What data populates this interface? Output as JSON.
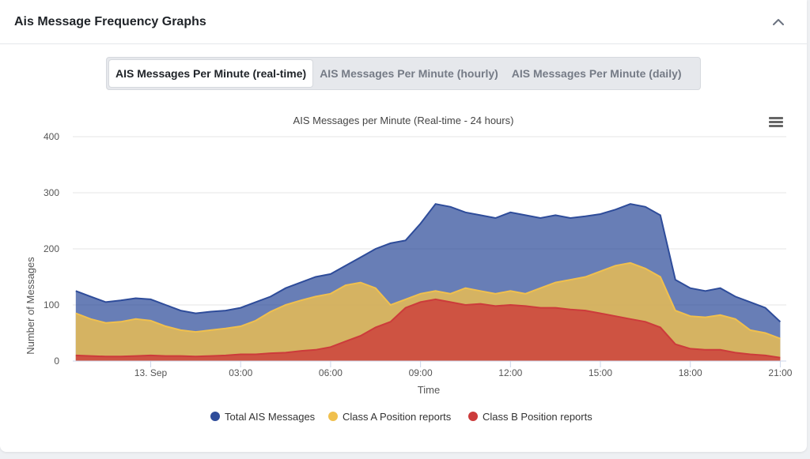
{
  "panel": {
    "title": "Ais Message Frequency Graphs"
  },
  "tabs": [
    {
      "label": "AIS Messages Per Minute (real-time)",
      "active": true
    },
    {
      "label": "AIS Messages Per Minute (hourly)",
      "active": false
    },
    {
      "label": "AIS Messages Per Minute (daily)",
      "active": false
    }
  ],
  "icons": {
    "collapse": "chevron-up-icon",
    "menu": "hamburger-menu-icon"
  },
  "colors": {
    "total": "#2e4c9a",
    "class_a": "#f0c04e",
    "class_b": "#cc3b3b",
    "grid": "#e6e6e6",
    "text": "#555555"
  },
  "chart_data": {
    "type": "area",
    "title": "AIS Messages per Minute (Real-time - 24 hours)",
    "xlabel": "Time",
    "ylabel": "Number of Messages",
    "ylim": [
      0,
      400
    ],
    "yticks": [
      0,
      100,
      200,
      300,
      400
    ],
    "xlim": [
      -2.6,
      21.2
    ],
    "xticks": [
      {
        "value": 0,
        "label": "13. Sep"
      },
      {
        "value": 3,
        "label": "03:00"
      },
      {
        "value": 6,
        "label": "06:00"
      },
      {
        "value": 9,
        "label": "09:00"
      },
      {
        "value": 12,
        "label": "12:00"
      },
      {
        "value": 15,
        "label": "15:00"
      },
      {
        "value": 18,
        "label": "18:00"
      },
      {
        "value": 21,
        "label": "21:00"
      }
    ],
    "grid": true,
    "legend_position": "bottom-center",
    "x": [
      -2.5,
      -2,
      -1.5,
      -1,
      -0.5,
      0,
      0.5,
      1,
      1.5,
      2,
      2.5,
      3,
      3.5,
      4,
      4.5,
      5,
      5.5,
      6,
      6.5,
      7,
      7.5,
      8,
      8.5,
      9,
      9.5,
      10,
      10.5,
      11,
      11.5,
      12,
      12.5,
      13,
      13.5,
      14,
      14.5,
      15,
      15.5,
      16,
      16.5,
      17,
      17.5,
      18,
      18.5,
      19,
      19.5,
      20,
      20.5,
      21
    ],
    "series": [
      {
        "name": "Total AIS Messages",
        "values": [
          125,
          115,
          105,
          108,
          112,
          110,
          100,
          90,
          85,
          88,
          90,
          95,
          105,
          115,
          130,
          140,
          150,
          155,
          170,
          185,
          200,
          210,
          215,
          245,
          280,
          275,
          265,
          260,
          255,
          265,
          260,
          255,
          260,
          255,
          258,
          262,
          270,
          280,
          275,
          260,
          145,
          130,
          125,
          130,
          115,
          105,
          95,
          70
        ]
      },
      {
        "name": "Class A Position reports",
        "values": [
          85,
          75,
          68,
          70,
          75,
          72,
          62,
          55,
          52,
          55,
          58,
          62,
          72,
          88,
          100,
          108,
          115,
          120,
          135,
          140,
          130,
          100,
          110,
          120,
          125,
          120,
          130,
          125,
          120,
          125,
          120,
          130,
          140,
          145,
          150,
          160,
          170,
          175,
          165,
          150,
          90,
          80,
          78,
          82,
          75,
          55,
          50,
          40
        ]
      },
      {
        "name": "Class B Position reports",
        "values": [
          10,
          9,
          8,
          8,
          9,
          10,
          9,
          9,
          8,
          9,
          10,
          12,
          12,
          14,
          15,
          18,
          20,
          25,
          35,
          45,
          60,
          70,
          95,
          105,
          110,
          105,
          100,
          102,
          98,
          100,
          98,
          95,
          95,
          92,
          90,
          85,
          80,
          75,
          70,
          60,
          30,
          22,
          20,
          20,
          15,
          12,
          10,
          6
        ]
      }
    ]
  }
}
